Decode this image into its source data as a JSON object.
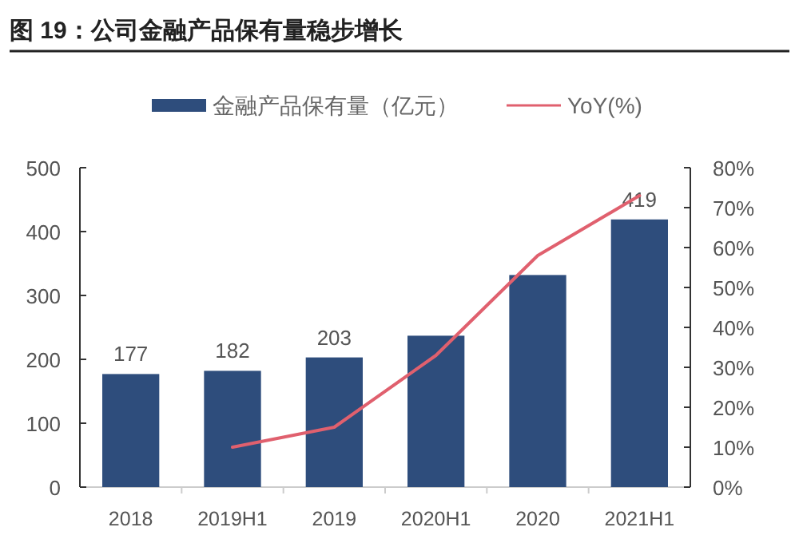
{
  "chart_data": {
    "type": "bar",
    "title": "图 19：公司金融产品保有量稳步增长",
    "categories": [
      "2018",
      "2019H1",
      "2019",
      "2020H1",
      "2020",
      "2021H1"
    ],
    "series": [
      {
        "name": "金融产品保有量（亿元）",
        "color": "#2e4d7c",
        "values": [
          177,
          182,
          203,
          237,
          332,
          419
        ],
        "value_labels": [
          "177",
          "182",
          "203",
          null,
          null,
          "419"
        ]
      },
      {
        "name": "YoY(%)",
        "type": "line",
        "axis": "y2",
        "color": "#e0606e",
        "values": [
          null,
          10,
          15,
          33,
          58,
          73
        ]
      }
    ],
    "ylim": [
      0,
      500
    ],
    "yticks": [
      0,
      100,
      200,
      300,
      400,
      500
    ],
    "y2lim": [
      0,
      80
    ],
    "y2ticks": [
      {
        "value": 0,
        "label": "0%"
      },
      {
        "value": 10,
        "label": "10%"
      },
      {
        "value": 20,
        "label": "20%"
      },
      {
        "value": 30,
        "label": "30%"
      },
      {
        "value": 40,
        "label": "40%"
      },
      {
        "value": 50,
        "label": "50%"
      },
      {
        "value": 60,
        "label": "60%"
      },
      {
        "value": 70,
        "label": "70%"
      },
      {
        "value": 80,
        "label": "80%"
      }
    ],
    "legend": "top",
    "grid": false,
    "marker": "none"
  }
}
